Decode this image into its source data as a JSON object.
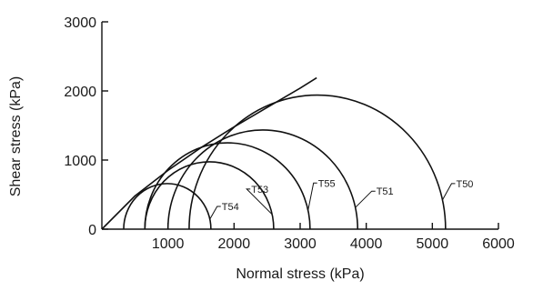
{
  "chart_data": {
    "type": "line",
    "title": "",
    "xlabel": "Normal stress (kPa)",
    "ylabel": "Shear stress (kPa)",
    "xlim": [
      0,
      6000
    ],
    "ylim": [
      0,
      3000
    ],
    "x_ticks": [
      1000,
      2000,
      3000,
      4000,
      5000,
      6000
    ],
    "y_ticks": [
      0,
      1000,
      2000,
      3000
    ],
    "x_tick_labels": [
      "1000",
      "2000",
      "3000",
      "4000",
      "5000",
      "6000"
    ],
    "y_tick_labels": [
      "0",
      "1000",
      "2000",
      "3000"
    ],
    "grid": false,
    "legend": "none",
    "mohr_circles": [
      {
        "label": "T50",
        "sigma3": 1320,
        "sigma1": 5200
      },
      {
        "label": "T51",
        "sigma3": 1000,
        "sigma1": 3870
      },
      {
        "label": "T55",
        "sigma3": 650,
        "sigma1": 3150
      },
      {
        "label": "T53",
        "sigma3": 650,
        "sigma1": 2600
      },
      {
        "label": "T54",
        "sigma3": 330,
        "sigma1": 1650
      }
    ],
    "failure_envelope": {
      "x": [
        0,
        500,
        1000,
        1500,
        2000,
        2500,
        3000,
        3250
      ],
      "y": [
        0,
        480,
        850,
        1180,
        1480,
        1760,
        2040,
        2190
      ]
    },
    "series": [
      {
        "values": [
          0,
          480,
          850,
          1180,
          1480,
          1760,
          2040,
          2190
        ]
      }
    ]
  }
}
